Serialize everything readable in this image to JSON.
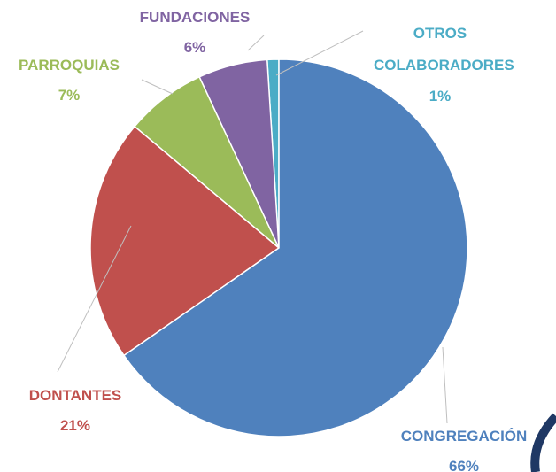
{
  "chart_data": {
    "type": "pie",
    "categories": [
      "CONGREGACIÓN",
      "DONTANTES",
      "PARROQUIAS",
      "FUNDACIONES",
      "OTROS COLABORADORES"
    ],
    "values": [
      66,
      21,
      7,
      6,
      1
    ],
    "value_labels": [
      "66%",
      "21%",
      "7%",
      "6%",
      "1%"
    ],
    "colors": [
      "#4f81bd",
      "#c0504d",
      "#9bbb59",
      "#8064a2",
      "#4bacc6"
    ]
  }
}
